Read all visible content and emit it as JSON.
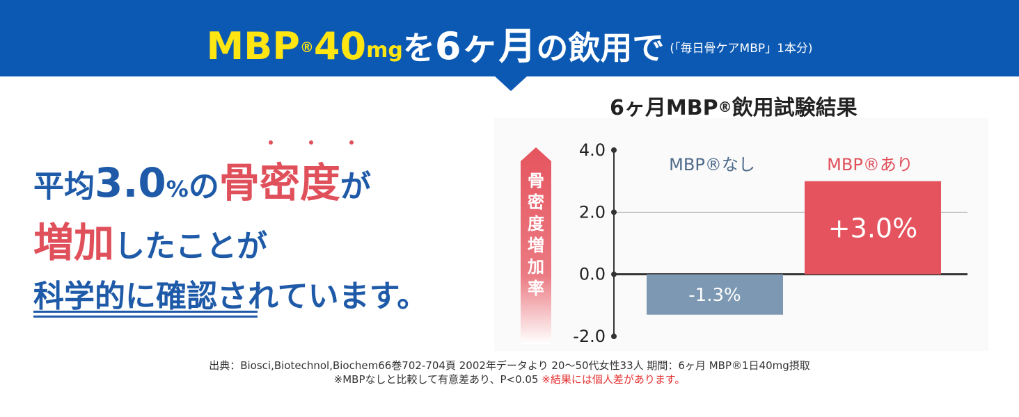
{
  "banner": {
    "brand": "MBP",
    "reg_mark": "®",
    "dose": "40",
    "unit": "mg",
    "particle": "を",
    "duration": "6ヶ月",
    "rest": "の飲用で",
    "note": "(「毎日骨ケアMBP」1本分)"
  },
  "headline": {
    "line1_pre": "平均",
    "line1_value": "3.0",
    "line1_pct": "%",
    "line1_mid": "の",
    "line1_keyword": "骨密度",
    "line1_post": "が",
    "line2_keyword": "増加",
    "line2_post": "したことが",
    "line3": "科学的に確認されています。"
  },
  "chart_data": {
    "type": "bar",
    "title": "6ヶ月MBP®飲用試験結果",
    "title_parts": {
      "pre": "6ヶ月MBP",
      "reg": "®",
      "post": "飲用試験結果"
    },
    "ylabel": "骨密度増加率",
    "ylim": [
      -2.0,
      4.0
    ],
    "yticks": [
      "4.0",
      "2.0",
      "0.0",
      "-2.0"
    ],
    "ytick_values": [
      4.0,
      2.0,
      0.0,
      -2.0
    ],
    "categories": [
      "MBP®なし",
      "MBP®あり"
    ],
    "values": [
      -1.3,
      3.0
    ],
    "value_labels": [
      "-1.3%",
      "+3.0%"
    ],
    "colors": [
      "#7d98b2",
      "#e5545e"
    ],
    "label_colors": [
      "#4d6a8a",
      "#e0505b"
    ],
    "grid": "horizontal at 2.0"
  },
  "source": {
    "line1": "出典：Biosci,Biotechnol,Biochem66巻702-704頁 2002年データより 20〜50代女性33人 期間：6ヶ月 MBP®1日40mg摂取",
    "line2": "※MBPなしと比較して有意差あり、P<0.05",
    "warning": "※結果には個人差があります。"
  }
}
